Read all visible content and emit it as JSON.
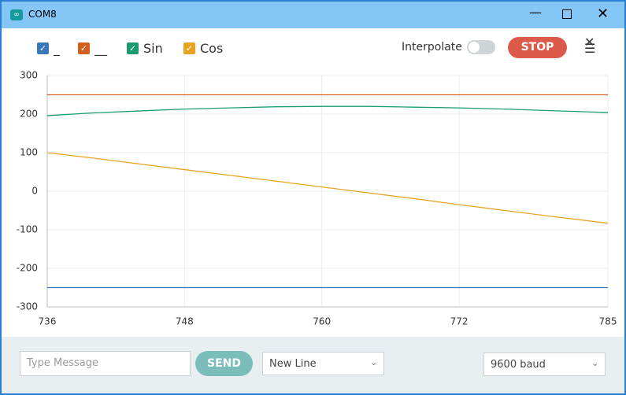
{
  "window": {
    "title": "COM8"
  },
  "toolbar": {
    "interpolate": "Interpolate",
    "stop": "STOP"
  },
  "chart_data": {
    "type": "line",
    "x": [
      736,
      740,
      744,
      748,
      752,
      756,
      760,
      764,
      768,
      772,
      776,
      780,
      785
    ],
    "series": [
      {
        "name": "_",
        "color": "#3a78b8",
        "values": [
          -250,
          -250,
          -250,
          -250,
          -250,
          -250,
          -250,
          -250,
          -250,
          -250,
          -250,
          -250,
          -250
        ]
      },
      {
        "name": "__",
        "color": "#d45f1c",
        "values": [
          250,
          250,
          250,
          250,
          250,
          250,
          250,
          250,
          250,
          250,
          250,
          250,
          250
        ]
      },
      {
        "name": "Sin",
        "color": "#1a9d6e",
        "values": [
          196,
          203,
          208,
          213,
          216,
          219,
          220,
          220,
          218,
          216,
          213,
          209,
          204
        ]
      },
      {
        "name": "Cos",
        "color": "#e6a422",
        "values": [
          100,
          86,
          71,
          56,
          41,
          26,
          11,
          -4,
          -19,
          -35,
          -50,
          -65,
          -83
        ]
      }
    ],
    "xlim": [
      736,
      785
    ],
    "xticks": [
      736,
      748,
      760,
      772,
      785
    ],
    "ylim": [
      -300,
      300
    ],
    "yticks": [
      -300,
      -200,
      -100,
      0,
      100,
      200,
      300
    ],
    "grid": true
  },
  "footer": {
    "message_placeholder": "Type Message",
    "send": "SEND",
    "line_ending": "New Line",
    "baud": "9600 baud"
  }
}
